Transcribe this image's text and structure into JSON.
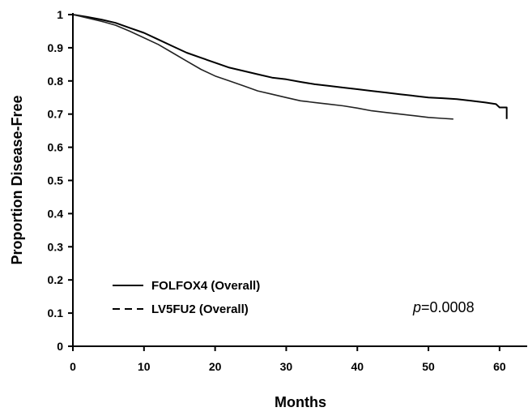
{
  "chart_data": {
    "type": "line",
    "xlabel": "Months",
    "ylabel": "Proportion Disease-Free",
    "xlim": [
      0,
      64
    ],
    "ylim": [
      0,
      1
    ],
    "x_ticks": [
      0,
      10,
      20,
      30,
      40,
      50,
      60
    ],
    "x_tick_labels": [
      "0",
      "10",
      "20",
      "30",
      "40",
      "50",
      "60"
    ],
    "y_ticks": [
      0,
      0.1,
      0.2,
      0.3,
      0.4,
      0.5,
      0.6,
      0.7,
      0.8,
      0.9,
      1
    ],
    "y_tick_labels": [
      "0",
      "0.1",
      "0.2",
      "0.3",
      "0.4",
      "0.5",
      "0.6",
      "0.7",
      "0.8",
      "0.9",
      "1"
    ],
    "grid": false,
    "legend_position": "bottom-left",
    "series": [
      {
        "name": "FOLFOX4 (Overall)",
        "style": "solid",
        "x": [
          0,
          2,
          4,
          6,
          8,
          10,
          12,
          14,
          16,
          18,
          20,
          22,
          24,
          26,
          28,
          30,
          32,
          34,
          36,
          38,
          40,
          42,
          44,
          46,
          48,
          50,
          52,
          54,
          56,
          58,
          59.5,
          60,
          60.5,
          61,
          61
        ],
        "y": [
          1.0,
          0.993,
          0.985,
          0.975,
          0.96,
          0.945,
          0.925,
          0.905,
          0.885,
          0.87,
          0.855,
          0.84,
          0.83,
          0.82,
          0.81,
          0.805,
          0.797,
          0.79,
          0.785,
          0.78,
          0.775,
          0.77,
          0.765,
          0.76,
          0.755,
          0.75,
          0.748,
          0.745,
          0.74,
          0.735,
          0.73,
          0.72,
          0.72,
          0.72,
          0.685
        ]
      },
      {
        "name": "LV5FU2 (Overall)",
        "style": "dashed",
        "x": [
          0,
          2,
          4,
          6,
          8,
          10,
          12,
          14,
          16,
          18,
          20,
          22,
          24,
          26,
          28,
          30,
          32,
          34,
          36,
          38,
          40,
          42,
          44,
          46,
          48,
          50,
          52,
          53.5
        ],
        "y": [
          1.0,
          0.99,
          0.98,
          0.968,
          0.95,
          0.93,
          0.91,
          0.885,
          0.86,
          0.835,
          0.815,
          0.8,
          0.785,
          0.77,
          0.76,
          0.75,
          0.74,
          0.735,
          0.73,
          0.725,
          0.718,
          0.71,
          0.705,
          0.7,
          0.695,
          0.69,
          0.687,
          0.685
        ]
      }
    ],
    "annotation": {
      "p_label": "p",
      "p_value": "=0.0008"
    }
  }
}
